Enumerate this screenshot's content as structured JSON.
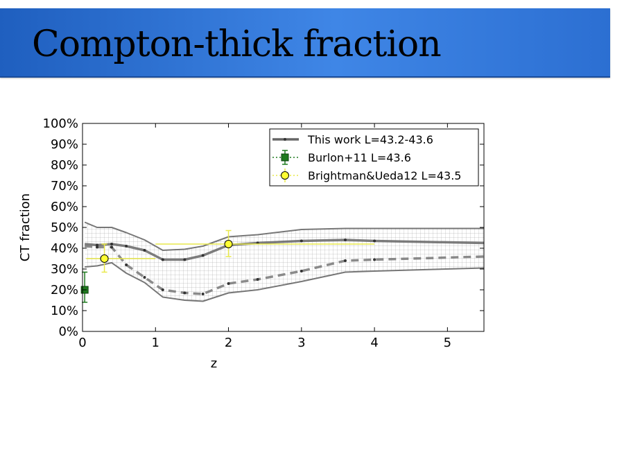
{
  "slide": {
    "title": "Compton-thick fraction"
  },
  "chart_data": {
    "type": "line",
    "title": "",
    "xlabel": "z",
    "ylabel": "CT fraction",
    "xlim": [
      0,
      5.5
    ],
    "ylim": [
      0,
      100
    ],
    "x_ticks": [
      0,
      1,
      2,
      3,
      4,
      5
    ],
    "x_tick_labels": [
      "0",
      "1",
      "2",
      "3",
      "4",
      "5"
    ],
    "y_ticks": [
      0,
      10,
      20,
      30,
      40,
      50,
      60,
      70,
      80,
      90,
      100
    ],
    "y_tick_labels": [
      "0%",
      "10%",
      "20%",
      "30%",
      "40%",
      "50%",
      "60%",
      "70%",
      "80%",
      "90%",
      "100%"
    ],
    "legend_position": "top-right",
    "series": [
      {
        "name": "This work L=43.2-43.6",
        "style": "solid",
        "color": "#666666",
        "x": [
          0.03,
          0.2,
          0.4,
          0.6,
          0.85,
          1.1,
          1.4,
          1.65,
          2.0,
          2.4,
          3.0,
          3.6,
          4.0,
          5.5
        ],
        "y": [
          42,
          41.5,
          42,
          41,
          39,
          34.5,
          34.5,
          36.5,
          41.5,
          42.5,
          43.5,
          44,
          43.5,
          42.5
        ]
      },
      {
        "name": "",
        "style": "dashed",
        "color": "#777777",
        "x": [
          0.03,
          0.2,
          0.4,
          0.6,
          0.85,
          1.1,
          1.4,
          1.65,
          2.0,
          2.4,
          3.0,
          3.6,
          4.0,
          5.5
        ],
        "y": [
          41,
          40.5,
          40.5,
          32,
          26,
          20,
          18.5,
          18,
          23,
          25,
          29,
          34,
          34.5,
          36
        ]
      },
      {
        "name": "",
        "style": "band-upper",
        "color": "#555555",
        "x": [
          0.03,
          0.2,
          0.4,
          0.6,
          0.85,
          1.1,
          1.4,
          1.65,
          2.0,
          2.4,
          3.0,
          3.6,
          4.0,
          5.5
        ],
        "y": [
          52.5,
          50,
          50,
          47.5,
          44,
          39,
          39.5,
          41,
          45.5,
          46.5,
          49,
          49.5,
          49.5,
          49.5
        ]
      },
      {
        "name": "",
        "style": "band-lower",
        "color": "#555555",
        "x": [
          0.03,
          0.2,
          0.4,
          0.6,
          0.85,
          1.1,
          1.4,
          1.65,
          2.0,
          2.4,
          3.0,
          3.6,
          4.0,
          5.5
        ],
        "y": [
          31,
          31.5,
          33,
          28,
          23.5,
          16.5,
          15,
          14.5,
          18.5,
          20,
          24,
          28.5,
          29,
          30.5
        ]
      }
    ],
    "points": [
      {
        "name": "Burlon+11 L=43.6",
        "marker": "square",
        "color": "#1e7a1e",
        "x": [
          0.03
        ],
        "y": [
          20
        ],
        "yerr_low": [
          6
        ],
        "yerr_high": [
          8.5
        ],
        "xerr": [
          0.05
        ]
      },
      {
        "name": "Brightman&Ueda12 L=43.5",
        "marker": "circle",
        "color": "#ffff33",
        "x": [
          0.3,
          2.0
        ],
        "y": [
          35,
          42
        ],
        "yerr_low": [
          6.5,
          6
        ],
        "yerr_high": [
          7,
          6.5
        ],
        "xerr_low": [
          0.25,
          1.0
        ],
        "xerr_high": [
          0.7,
          2.0
        ]
      }
    ]
  }
}
